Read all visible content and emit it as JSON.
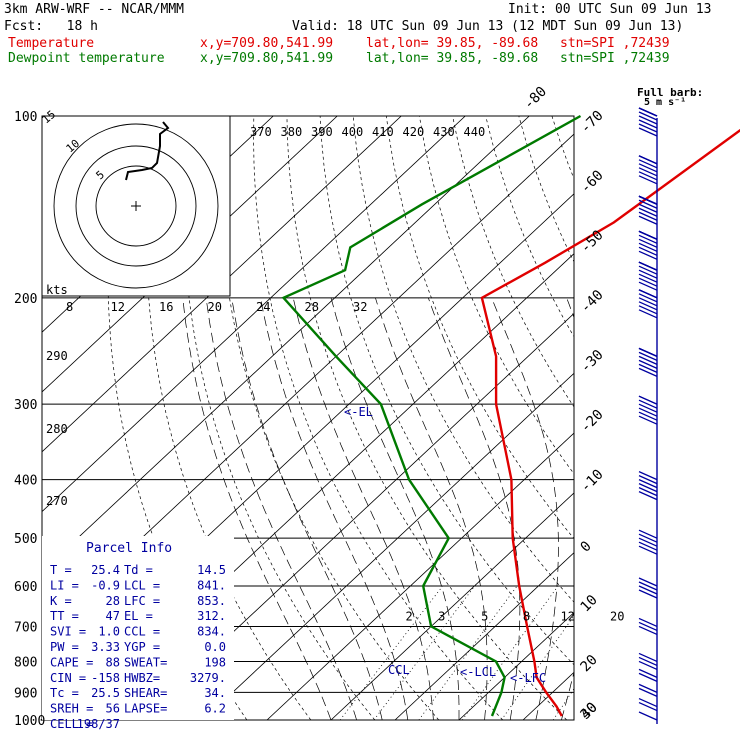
{
  "header": {
    "model": "3km ARW-WRF -- NCAR/MMM",
    "init": "Init: 00 UTC Sun 09 Jun 13",
    "fcst": "Fcst:   18 h",
    "valid": "Valid: 18 UTC Sun 09 Jun 13 (12 MDT Sun 09 Jun 13)",
    "temp_label": "Temperature",
    "dew_label": "Dewpoint temperature",
    "xy": "x,y=709.80,541.99",
    "latlon": "lat,lon= 39.85, -89.68",
    "stn": "stn=SPI ,72439"
  },
  "barb_legend": {
    "line1": "Full barb:",
    "line2": "5 m s⁻¹"
  },
  "hodograph": {
    "units": "kts",
    "ring_labels": [
      "5",
      "10",
      "15"
    ]
  },
  "parcel_info": {
    "title": "Parcel Info",
    "rows": [
      [
        "T  =",
        "25.4",
        "Td =",
        "14.5"
      ],
      [
        "LI =",
        "-0.9",
        "LCL =",
        "841."
      ],
      [
        "K  =",
        "28",
        "LFC =",
        "853."
      ],
      [
        "TT =",
        "47",
        "EL  =",
        "312."
      ],
      [
        "SVI =",
        "1.0",
        "CCL =",
        "834."
      ],
      [
        "PW =",
        "3.33",
        "YGP =",
        "0.0"
      ],
      [
        "CAPE =",
        "88",
        "SWEAT=",
        "198"
      ],
      [
        "CIN =",
        "-158",
        "HWBZ=",
        "3279."
      ],
      [
        "Tc =",
        "25.5",
        "SHEAR=",
        "34."
      ],
      [
        "SREH =",
        "56",
        "LAPSE=",
        "6.2"
      ],
      [
        "CELL =",
        "198/37",
        "",
        ""
      ]
    ]
  },
  "annotations": {
    "el": "<-EL",
    "lcl": "<-LCL",
    "ccl": "CCL",
    "lfc": "<-LFC"
  },
  "colors": {
    "temperature": "#e00000",
    "dewpoint": "#007a00",
    "wind": "#0000a0",
    "lines": "#000000"
  },
  "chart_data": {
    "type": "line",
    "diagram": "skew-T log-p",
    "pressure_levels": [
      100,
      200,
      300,
      400,
      500,
      600,
      700,
      800,
      900,
      1000
    ],
    "isotherm_labels": [
      -80,
      -70,
      -60,
      -50,
      -40,
      -30,
      -20,
      -10,
      0,
      10,
      20,
      30,
      40
    ],
    "theta_e_labels": [
      370,
      380,
      390,
      400,
      410,
      420,
      430,
      440
    ],
    "theta_labels": [
      290,
      280,
      270
    ],
    "mixing_ratio_labels": [
      2,
      3,
      5,
      8,
      12,
      20
    ],
    "hodo_axis_labels": [
      8,
      12,
      16,
      20,
      24,
      28,
      32
    ],
    "series": [
      {
        "name": "Temperature",
        "points": [
          [
            100,
            -44
          ],
          [
            150,
            -49
          ],
          [
            175,
            -53
          ],
          [
            200,
            -57
          ],
          [
            250,
            -45
          ],
          [
            300,
            -37
          ],
          [
            400,
            -22
          ],
          [
            500,
            -12
          ],
          [
            600,
            -3
          ],
          [
            700,
            5
          ],
          [
            800,
            12
          ],
          [
            850,
            15
          ],
          [
            900,
            19
          ],
          [
            950,
            23
          ],
          [
            985,
            25.4
          ]
        ]
      },
      {
        "name": "Dewpoint temperature",
        "points": [
          [
            100,
            -72
          ],
          [
            140,
            -82
          ],
          [
            165,
            -86
          ],
          [
            180,
            -83
          ],
          [
            200,
            -88
          ],
          [
            250,
            -70
          ],
          [
            300,
            -55
          ],
          [
            400,
            -38
          ],
          [
            500,
            -22
          ],
          [
            600,
            -18
          ],
          [
            700,
            -10
          ],
          [
            800,
            6
          ],
          [
            850,
            10
          ],
          [
            900,
            12
          ],
          [
            985,
            14.5
          ]
        ]
      }
    ],
    "wind": [
      [
        100,
        8
      ],
      [
        120,
        9
      ],
      [
        140,
        12
      ],
      [
        160,
        12
      ],
      [
        180,
        11
      ],
      [
        200,
        9
      ],
      [
        250,
        8
      ],
      [
        300,
        7
      ],
      [
        400,
        6
      ],
      [
        500,
        5
      ],
      [
        600,
        4
      ],
      [
        700,
        3
      ],
      [
        800,
        3
      ],
      [
        850,
        2
      ],
      [
        900,
        2
      ],
      [
        950,
        2
      ],
      [
        1000,
        1
      ]
    ]
  }
}
